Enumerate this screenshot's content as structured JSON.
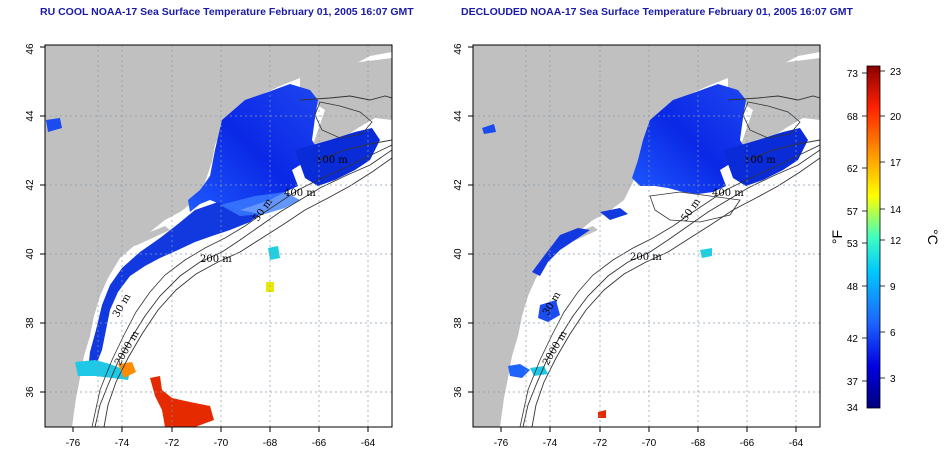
{
  "titles": {
    "left": "RU COOL NOAA-17 Sea Surface Temperature February 01, 2005 16:07 GMT",
    "right": "DECLOUDED NOAA-17 Sea Surface Temperature February 01, 2005 16:07 GMT"
  },
  "map_axes": {
    "lon_ticks": [
      "-76",
      "-74",
      "-72",
      "-70",
      "-68",
      "-66",
      "-64"
    ],
    "lat_ticks": [
      "36",
      "38",
      "40",
      "42",
      "44",
      "46"
    ],
    "lon_range": [
      -77,
      -63
    ],
    "lat_range": [
      35,
      46
    ],
    "grid": "dotted"
  },
  "contours": {
    "c100": "100 m",
    "c400": "400 m",
    "c50": "50 m",
    "c200": "200 m",
    "c30": "30 m",
    "c2000": "2000 m"
  },
  "colorbar": {
    "f_ticks": [
      "73",
      "68",
      "62",
      "57",
      "53",
      "48",
      "42",
      "37",
      "34"
    ],
    "c_ticks": [
      "23",
      "20",
      "17",
      "14",
      "12",
      "9",
      "6",
      "3"
    ],
    "f_unit": "°F",
    "c_unit": "°C",
    "f_range": [
      34,
      74
    ],
    "c_range": [
      1,
      23
    ],
    "gradient": [
      "#00007f",
      "#0000e0",
      "#1e64ff",
      "#00c8ff",
      "#40ffbf",
      "#ffff00",
      "#ff9000",
      "#ff2000",
      "#8b0000"
    ]
  },
  "colors": {
    "land": "#c0c0c0",
    "title": "#1a1aa8",
    "frame": "#000000"
  }
}
